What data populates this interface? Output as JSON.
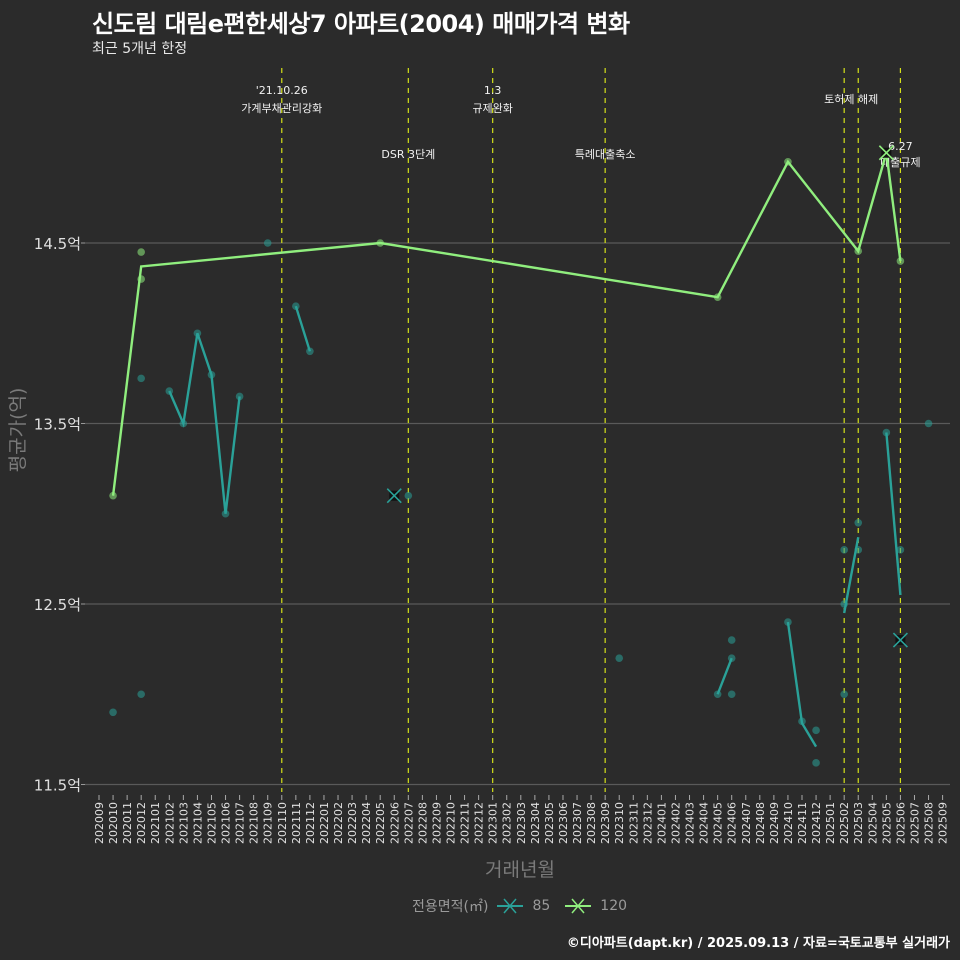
{
  "header": {
    "title": "신도림 대림e편한세상7 아파트(2004) 매매가격 변화",
    "subtitle": "최근 5개년 한정"
  },
  "legend": {
    "title": "전용면적(㎡)",
    "items": [
      {
        "label": "85",
        "color": "#2aa198"
      },
      {
        "label": "120",
        "color": "#90ee7e"
      }
    ]
  },
  "caption": "©디아파트(dapt.kr) / 2025.09.13 / 자료=국토교통부 실거래가",
  "chart_data": {
    "type": "line",
    "title": "신도림 대림e편한세상7 아파트(2004) 매매가격 변화",
    "xlabel": "거래년월",
    "ylabel": "평균가(억)",
    "ylim": [
      11.5,
      15.2
    ],
    "yticks": [
      {
        "value": 11.5,
        "label": "11.5억"
      },
      {
        "value": 12.5,
        "label": "12.5억"
      },
      {
        "value": 13.5,
        "label": "13.5억"
      },
      {
        "value": 14.5,
        "label": "14.5억"
      }
    ],
    "categories": [
      "202009",
      "202010",
      "202011",
      "202012",
      "202101",
      "202102",
      "202103",
      "202104",
      "202105",
      "202106",
      "202107",
      "202108",
      "202109",
      "202110",
      "202111",
      "202112",
      "202201",
      "202202",
      "202203",
      "202204",
      "202205",
      "202206",
      "202207",
      "202208",
      "202209",
      "202210",
      "202211",
      "202212",
      "202301",
      "202302",
      "202303",
      "202304",
      "202305",
      "202306",
      "202307",
      "202308",
      "202309",
      "202310",
      "202311",
      "202312",
      "202401",
      "202402",
      "202403",
      "202404",
      "202405",
      "202406",
      "202407",
      "202408",
      "202409",
      "202410",
      "202411",
      "202412",
      "202501",
      "202502",
      "202503",
      "202504",
      "202505",
      "202506",
      "202507",
      "202508",
      "202509"
    ],
    "series": [
      {
        "name": "85",
        "color": "#2aa198",
        "lines": [
          [
            [
              "202102",
              13.68
            ],
            [
              "202103",
              13.5
            ],
            [
              "202104",
              14.0
            ],
            [
              "202105",
              13.77
            ],
            [
              "202106",
              13.0
            ],
            [
              "202107",
              13.65
            ]
          ],
          [
            [
              "202111",
              14.15
            ],
            [
              "202112",
              13.9
            ]
          ],
          [
            [
              "202405",
              12.0
            ],
            [
              "202406",
              12.2
            ]
          ],
          [
            [
              "202410",
              12.4
            ],
            [
              "202411",
              11.84
            ],
            [
              "202412",
              11.71
            ]
          ],
          [
            [
              "202502",
              12.45
            ],
            [
              "202503",
              12.87
            ]
          ],
          [
            [
              "202505",
              13.45
            ],
            [
              "202506",
              12.55
            ]
          ]
        ],
        "points": [
          [
            "202010",
            11.9
          ],
          [
            "202012",
            12.0
          ],
          [
            "202012",
            13.75
          ],
          [
            "202102",
            13.68
          ],
          [
            "202103",
            13.5
          ],
          [
            "202104",
            14.0
          ],
          [
            "202105",
            13.77
          ],
          [
            "202106",
            13.0
          ],
          [
            "202107",
            13.65
          ],
          [
            "202109",
            14.5
          ],
          [
            "202111",
            14.15
          ],
          [
            "202112",
            13.9
          ],
          [
            "202207",
            13.1
          ],
          [
            "202310",
            12.2
          ],
          [
            "202405",
            12.0
          ],
          [
            "202406",
            12.2
          ],
          [
            "202406",
            12.3
          ],
          [
            "202406",
            12.0
          ],
          [
            "202410",
            12.4
          ],
          [
            "202411",
            11.85
          ],
          [
            "202412",
            11.8
          ],
          [
            "202412",
            11.62
          ],
          [
            "202502",
            12.8
          ],
          [
            "202502",
            12.5
          ],
          [
            "202502",
            12.0
          ],
          [
            "202503",
            12.95
          ],
          [
            "202503",
            12.8
          ],
          [
            "202505",
            13.45
          ],
          [
            "202506",
            12.8
          ],
          [
            "202508",
            13.5
          ]
        ],
        "highlights": [
          [
            "202206",
            13.1
          ],
          [
            "202506",
            12.3
          ]
        ]
      },
      {
        "name": "120",
        "color": "#90ee7e",
        "lines": [
          [
            [
              "202010",
              13.1
            ],
            [
              "202012",
              14.37
            ],
            [
              "202205",
              14.5
            ],
            [
              "202405",
              14.2
            ],
            [
              "202410",
              14.95
            ],
            [
              "202503",
              14.455
            ],
            [
              "202505",
              15.0
            ],
            [
              "202506",
              14.4
            ]
          ]
        ],
        "points": [
          [
            "202010",
            13.1
          ],
          [
            "202012",
            14.45
          ],
          [
            "202012",
            14.3
          ],
          [
            "202205",
            14.5
          ],
          [
            "202405",
            14.2
          ],
          [
            "202410",
            14.95
          ],
          [
            "202503",
            14.455
          ],
          [
            "202506",
            14.4
          ]
        ],
        "highlights": [
          [
            "202505",
            15.0
          ]
        ]
      }
    ],
    "annotations": [
      {
        "month": "202110",
        "lines": [
          "'21.10.26",
          "가계부채관리강화"
        ],
        "row": "top"
      },
      {
        "month": "202207",
        "lines": [
          "DSR 3단계"
        ],
        "row": "bottom"
      },
      {
        "month": "202301",
        "lines": [
          "1.3",
          "규제완화"
        ],
        "row": "top"
      },
      {
        "month": "202309",
        "lines": [
          "특례대출축소"
        ],
        "row": "bottom"
      },
      {
        "month": "202502",
        "lines": [],
        "row": "top"
      },
      {
        "month": "202503",
        "lines": [
          "토허제 해제"
        ],
        "row": "mid",
        "center_between": "202502"
      },
      {
        "month": "202506",
        "lines": [
          "6.27",
          "대출규제"
        ],
        "row": "lower"
      }
    ],
    "grid": true,
    "legend_position": "bottom"
  }
}
